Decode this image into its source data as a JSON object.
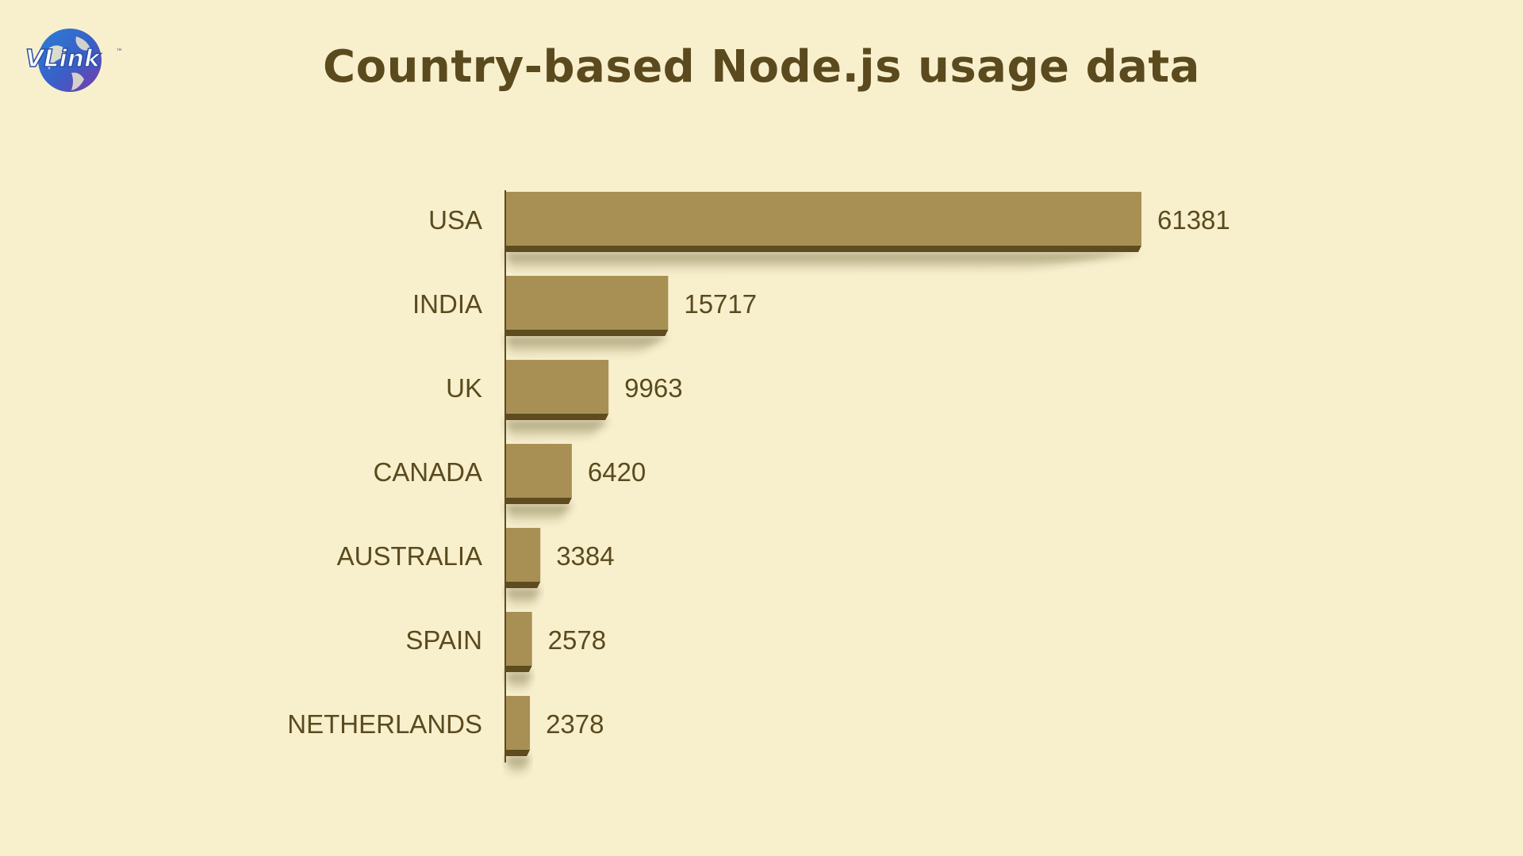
{
  "logo": {
    "text": "VLink",
    "trademark": "™"
  },
  "colors": {
    "background": "#f8f0cd",
    "bar": "#a89054",
    "bar_dark": "#5e4c20",
    "text": "#5a4a1e"
  },
  "chart_data": {
    "type": "bar",
    "orientation": "horizontal",
    "title": "Country-based Node.js usage data",
    "categories": [
      "USA",
      "INDIA",
      "UK",
      "CANADA",
      "AUSTRALIA",
      "SPAIN",
      "NETHERLANDS"
    ],
    "values": [
      61381,
      15717,
      9963,
      6420,
      3384,
      2578,
      2378
    ],
    "data_labels": [
      "61381",
      "15717",
      "9963",
      "6420",
      "3384",
      "2578",
      "2378"
    ],
    "xlabel": "",
    "ylabel": "",
    "grid": false,
    "legend": "none"
  }
}
